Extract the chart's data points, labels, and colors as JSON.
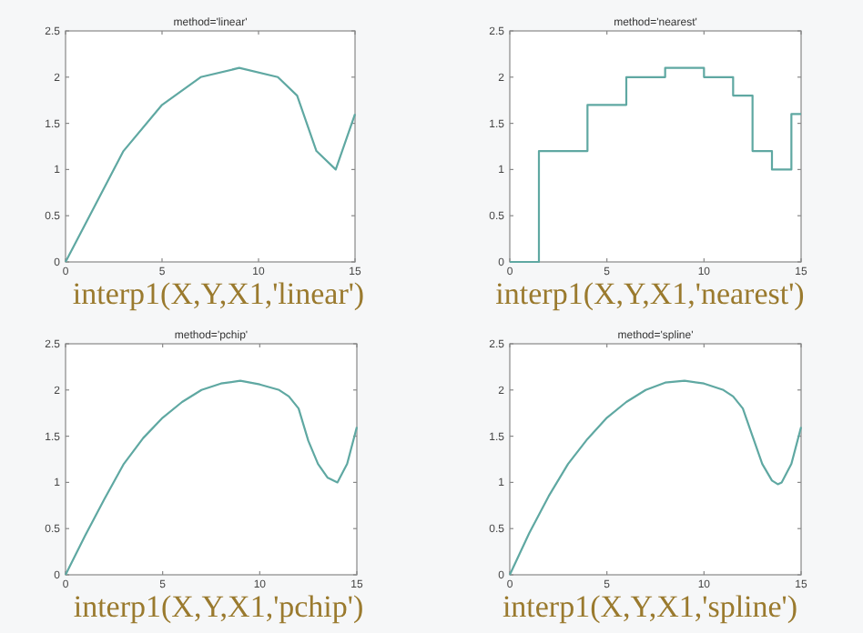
{
  "chart_data": [
    {
      "type": "line",
      "title": "method='linear'",
      "annotations": [
        "interp1(X,Y,X1,'linear')"
      ],
      "xlim": [
        0,
        15
      ],
      "xticks": [
        0,
        5,
        10,
        15
      ],
      "ylim": [
        0,
        2.5
      ],
      "yticks": [
        0,
        0.5,
        1,
        1.5,
        2,
        2.5
      ],
      "grid": false,
      "series": [
        {
          "color": "#5fa8a2",
          "x": [
            0,
            3,
            5,
            7,
            9,
            11,
            12,
            13,
            14,
            15
          ],
          "values": [
            0,
            1.2,
            1.7,
            2.0,
            2.1,
            2.0,
            1.8,
            1.2,
            1.0,
            1.6
          ]
        }
      ]
    },
    {
      "type": "step",
      "title": "method='nearest'",
      "annotations": [
        "interp1(X,Y,X1,'nearest')"
      ],
      "xlim": [
        0,
        15
      ],
      "xticks": [
        0,
        5,
        10,
        15
      ],
      "ylim": [
        0,
        2.5
      ],
      "yticks": [
        0,
        0.5,
        1,
        1.5,
        2,
        2.5
      ],
      "grid": false,
      "series": [
        {
          "color": "#5fa8a2",
          "x": [
            0,
            3,
            5,
            7,
            9,
            11,
            12,
            13,
            14,
            15
          ],
          "values": [
            0,
            1.2,
            1.7,
            2.0,
            2.1,
            2.0,
            1.8,
            1.2,
            1.0,
            1.6
          ]
        }
      ]
    },
    {
      "type": "line",
      "title": "method='pchip'",
      "annotations": [
        "interp1(X,Y,X1,'pchip')"
      ],
      "xlim": [
        0,
        15
      ],
      "xticks": [
        0,
        5,
        10,
        15
      ],
      "ylim": [
        0,
        2.5
      ],
      "yticks": [
        0,
        0.5,
        1,
        1.5,
        2,
        2.5
      ],
      "grid": false,
      "series": [
        {
          "color": "#5fa8a2",
          "x": [
            0,
            1,
            2,
            3,
            4,
            5,
            6,
            7,
            8,
            9,
            10,
            11,
            11.5,
            12,
            12.5,
            13,
            13.5,
            14,
            14.5,
            15
          ],
          "values": [
            0,
            0.42,
            0.82,
            1.2,
            1.48,
            1.7,
            1.87,
            2.0,
            2.07,
            2.1,
            2.06,
            2.0,
            1.93,
            1.8,
            1.45,
            1.2,
            1.05,
            1.0,
            1.2,
            1.6
          ]
        }
      ]
    },
    {
      "type": "line",
      "title": "method='spline'",
      "annotations": [
        "interp1(X,Y,X1,'spline')"
      ],
      "xlim": [
        0,
        15
      ],
      "xticks": [
        0,
        5,
        10,
        15
      ],
      "ylim": [
        0,
        2.5
      ],
      "yticks": [
        0,
        0.5,
        1,
        1.5,
        2,
        2.5
      ],
      "grid": false,
      "series": [
        {
          "color": "#5fa8a2",
          "x": [
            0,
            1,
            2,
            3,
            4,
            5,
            6,
            7,
            8,
            9,
            10,
            11,
            11.5,
            12,
            12.5,
            13,
            13.5,
            13.8,
            14,
            14.5,
            15
          ],
          "values": [
            0,
            0.45,
            0.85,
            1.2,
            1.47,
            1.7,
            1.87,
            2.0,
            2.08,
            2.1,
            2.07,
            2.0,
            1.93,
            1.8,
            1.5,
            1.2,
            1.02,
            0.98,
            1.0,
            1.2,
            1.6
          ]
        }
      ]
    }
  ]
}
